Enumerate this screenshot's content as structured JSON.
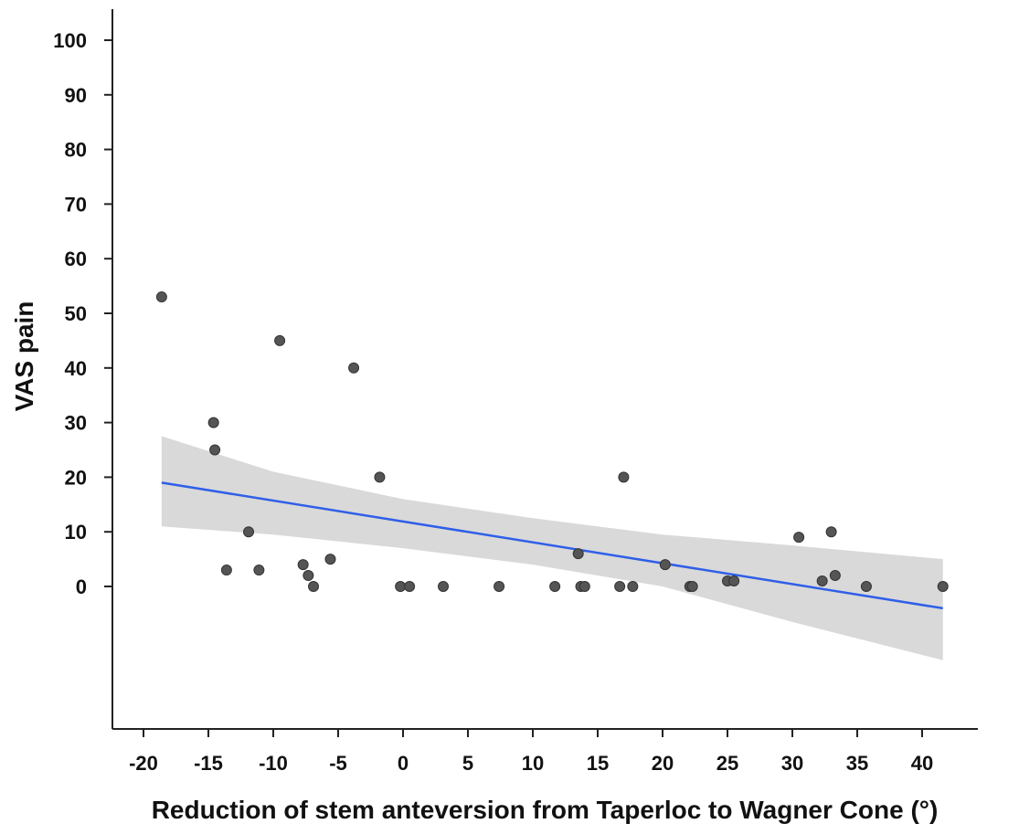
{
  "chart_data": {
    "type": "scatter",
    "title": "",
    "xlabel": "Reduction of stem anteversion from Taperloc to Wagner Cone (°)",
    "ylabel": "VAS pain",
    "xlim": [
      -22,
      44
    ],
    "ylim": [
      -26,
      106
    ],
    "x_ticks": [
      -20,
      -15,
      -10,
      -5,
      0,
      5,
      10,
      15,
      20,
      25,
      30,
      35,
      40
    ],
    "x_tick_labels": [
      "-20",
      "-15",
      "-10",
      "-5",
      "0",
      "5",
      "10",
      "15",
      "20",
      "25",
      "30",
      "35",
      "40"
    ],
    "y_ticks": [
      0,
      10,
      20,
      30,
      40,
      50,
      60,
      70,
      80,
      90,
      100
    ],
    "y_tick_labels": [
      "0",
      "10",
      "20",
      "30",
      "40",
      "50",
      "60",
      "70",
      "80",
      "90",
      "100"
    ],
    "grid": false,
    "legend": "none",
    "colors": {
      "points": "#555555",
      "point_stroke": "#333333",
      "fit_line": "#2f5fe8",
      "confidence_band": "#d9d9d9",
      "axis": "#222222"
    },
    "series": [
      {
        "kind": "points",
        "points": [
          {
            "x": -18.6,
            "y": 53
          },
          {
            "x": -14.6,
            "y": 30
          },
          {
            "x": -14.5,
            "y": 25
          },
          {
            "x": -13.6,
            "y": 3
          },
          {
            "x": -11.9,
            "y": 10
          },
          {
            "x": -11.1,
            "y": 3
          },
          {
            "x": -9.5,
            "y": 45
          },
          {
            "x": -7.7,
            "y": 4
          },
          {
            "x": -7.3,
            "y": 2
          },
          {
            "x": -6.9,
            "y": 0
          },
          {
            "x": -5.6,
            "y": 5
          },
          {
            "x": -3.8,
            "y": 40
          },
          {
            "x": -1.8,
            "y": 20
          },
          {
            "x": -0.2,
            "y": 0
          },
          {
            "x": 0.5,
            "y": 0
          },
          {
            "x": 3.1,
            "y": 0
          },
          {
            "x": 7.4,
            "y": 0
          },
          {
            "x": 11.7,
            "y": 0
          },
          {
            "x": 13.5,
            "y": 6
          },
          {
            "x": 13.7,
            "y": 0
          },
          {
            "x": 14.0,
            "y": 0
          },
          {
            "x": 16.7,
            "y": 0
          },
          {
            "x": 17.0,
            "y": 20
          },
          {
            "x": 17.7,
            "y": 0
          },
          {
            "x": 20.2,
            "y": 4
          },
          {
            "x": 22.1,
            "y": 0
          },
          {
            "x": 22.3,
            "y": 0
          },
          {
            "x": 25.0,
            "y": 1
          },
          {
            "x": 25.5,
            "y": 1
          },
          {
            "x": 30.5,
            "y": 9
          },
          {
            "x": 32.3,
            "y": 1
          },
          {
            "x": 33.0,
            "y": 10
          },
          {
            "x": 33.3,
            "y": 2
          },
          {
            "x": 35.7,
            "y": 0
          },
          {
            "x": 41.6,
            "y": 0
          }
        ]
      },
      {
        "kind": "fit_line",
        "points": [
          {
            "x": -18.6,
            "y": 19
          },
          {
            "x": 41.6,
            "y": -4
          }
        ]
      },
      {
        "kind": "confidence_band",
        "upper": [
          {
            "x": -18.6,
            "y": 27.5
          },
          {
            "x": -10,
            "y": 21
          },
          {
            "x": 0,
            "y": 16
          },
          {
            "x": 10,
            "y": 12.5
          },
          {
            "x": 20,
            "y": 9.5
          },
          {
            "x": 30,
            "y": 7.5
          },
          {
            "x": 41.6,
            "y": 5
          }
        ],
        "lower": [
          {
            "x": -18.6,
            "y": 11
          },
          {
            "x": -10,
            "y": 9.5
          },
          {
            "x": 0,
            "y": 7
          },
          {
            "x": 10,
            "y": 4
          },
          {
            "x": 20,
            "y": 0
          },
          {
            "x": 30,
            "y": -6.5
          },
          {
            "x": 41.6,
            "y": -13.5
          }
        ]
      }
    ]
  }
}
